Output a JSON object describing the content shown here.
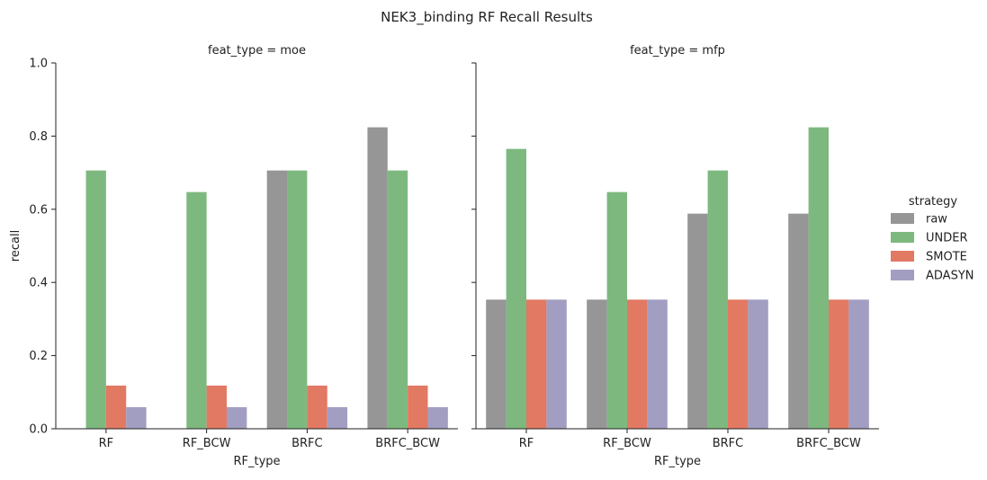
{
  "suptitle": "NEK3_binding RF Recall Results",
  "legend": {
    "title": "strategy",
    "items": [
      {
        "label": "raw",
        "color": "#969696"
      },
      {
        "label": "UNDER",
        "color": "#7db97f"
      },
      {
        "label": "SMOTE",
        "color": "#e27963"
      },
      {
        "label": "ADASYN",
        "color": "#a29ec2"
      }
    ]
  },
  "chart_data": [
    {
      "type": "bar",
      "title": "feat_type = moe",
      "xlabel": "RF_type",
      "ylabel": "recall",
      "categories": [
        "RF",
        "RF_BCW",
        "BRFC",
        "BRFC_BCW"
      ],
      "ylim": [
        0,
        1.0
      ],
      "yticks": [
        "0.0",
        "0.2",
        "0.4",
        "0.6",
        "0.8",
        "1.0"
      ],
      "series": [
        {
          "name": "raw",
          "values": [
            0.0,
            0.0,
            0.706,
            0.824
          ]
        },
        {
          "name": "UNDER",
          "values": [
            0.706,
            0.647,
            0.706,
            0.706
          ]
        },
        {
          "name": "SMOTE",
          "values": [
            0.118,
            0.118,
            0.118,
            0.118
          ]
        },
        {
          "name": "ADASYN",
          "values": [
            0.059,
            0.059,
            0.059,
            0.059
          ]
        }
      ]
    },
    {
      "type": "bar",
      "title": "feat_type = mfp",
      "xlabel": "RF_type",
      "ylabel": "",
      "categories": [
        "RF",
        "RF_BCW",
        "BRFC",
        "BRFC_BCW"
      ],
      "ylim": [
        0,
        1.0
      ],
      "yticks": [],
      "series": [
        {
          "name": "raw",
          "values": [
            0.353,
            0.353,
            0.588,
            0.588
          ]
        },
        {
          "name": "UNDER",
          "values": [
            0.765,
            0.647,
            0.706,
            0.824
          ]
        },
        {
          "name": "SMOTE",
          "values": [
            0.353,
            0.353,
            0.353,
            0.353
          ]
        },
        {
          "name": "ADASYN",
          "values": [
            0.353,
            0.353,
            0.353,
            0.353
          ]
        }
      ]
    }
  ]
}
